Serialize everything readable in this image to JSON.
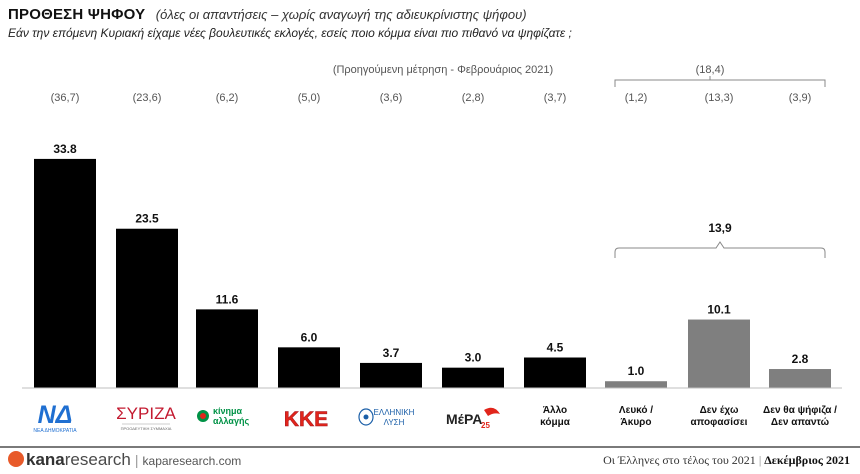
{
  "header": {
    "title": "ΠΡΟΘΕΣΗ ΨΗΦΟΥ",
    "subtitle": "(όλες οι απαντήσεις – χωρίς αναγωγή της αδιευκρίνιστης ψήφου)",
    "question": "Εάν την επόμενη Κυριακή είχαμε νέες βουλευτικές εκλογές, εσείς ποιο κόμμα είναι πιο πιθανό να ψηφίζατε ;"
  },
  "chart_data": {
    "type": "bar",
    "categories": [
      "ΝΔ",
      "ΣΥΡΙΖΑ",
      "κίνημα αλλαγής",
      "ΚΚΕ",
      "ΕΛΛΗΝΙΚΗ ΛΥΣΗ",
      "ΜέΡΑ25",
      "Άλλο κόμμα",
      "Λευκό / Άκυρο",
      "Δεν έχω αποφασίσει",
      "Δεν θα ψήφιζα / Δεν απαντώ"
    ],
    "values": [
      33.8,
      23.5,
      11.6,
      6.0,
      3.7,
      3.0,
      4.5,
      1.0,
      10.1,
      2.8
    ],
    "value_labels": [
      "33.8",
      "23.5",
      "11.6",
      "6.0",
      "3.7",
      "3.0",
      "4.5",
      "1.0",
      "10.1",
      "2.8"
    ],
    "previous_values": [
      "(36,7)",
      "(23,6)",
      "(6,2)",
      "(5,0)",
      "(3,6)",
      "(2,8)",
      "(3,7)",
      "(1,2)",
      "(13,3)",
      "(3,9)"
    ],
    "previous_label": "(Προηγούμενη μέτρηση - Φεβρουάριος 2021)",
    "previous_group_total": "(18,4)",
    "group_total": "13,9",
    "ylim": [
      0,
      36
    ],
    "colors": {
      "party": "#000000",
      "other": "#7f7f7f",
      "bracket": "#888888"
    }
  },
  "labels": {
    "nd_logo": "ΝΔ",
    "nd_caption": "ΝΕΑ ΔΗΜΟΚΡΑΤΙΑ",
    "syriza_logo": "ΣΥΡΙΖΑ",
    "syriza_caption": "ΠΡΟΟΔΕΥΤΙΚΗ ΣΥΜΜΑΧΙΑ",
    "kinal_line1": "κίνημα",
    "kinal_line2": "αλλαγής",
    "kke_logo": "ΚΚΕ",
    "el_line1": "ΕΛΛΗΝΙΚΗ",
    "el_line2": "ΛΥΣΗ",
    "mera_logo": "ΜέΡΑ",
    "mera_sub": "25",
    "other_line1": "Άλλο",
    "other_line2": "κόμμα",
    "blank_line1": "Λευκό /",
    "blank_line2": "Άκυρο",
    "undecided_line1": "Δεν έχω",
    "undecided_line2": "αποφασίσει",
    "noanswer_line1": "Δεν θα ψήφιζα /",
    "noanswer_line2": "Δεν απαντώ"
  },
  "footer": {
    "brand_prefix": "kana",
    "brand_suffix": "research",
    "website": "kaparesearch.com",
    "source_text": "Οι Έλληνες στο τέλος του 2021",
    "date": "Δεκέμβριος 2021"
  }
}
